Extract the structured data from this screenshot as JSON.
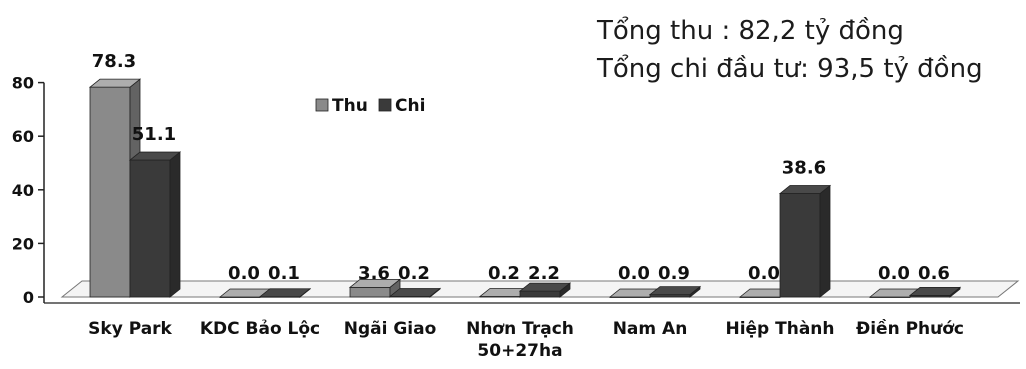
{
  "annotations": {
    "total_income": "Tổng thu : 82,2  tỷ đồng",
    "total_spend": "Tổng chi đầu tư: 93,5 tỷ đồng"
  },
  "chart_data": {
    "type": "bar",
    "style": "3d-clustered-column",
    "categories": [
      "Sky Park",
      "KDC Bảo Lộc",
      "Ngãi Giao",
      "Nhơn Trạch 50+27ha",
      "Nam An",
      "Hiệp Thành",
      "Điền Phước"
    ],
    "category_lines": [
      [
        "Sky Park"
      ],
      [
        "KDC Bảo Lộc"
      ],
      [
        "Ngãi Giao"
      ],
      [
        "Nhơn Trạch",
        "50+27ha"
      ],
      [
        "Nam An"
      ],
      [
        "Hiệp Thành"
      ],
      [
        "Điền Phước"
      ]
    ],
    "series": [
      {
        "name": "Thu",
        "values": [
          78.3,
          0.0,
          3.6,
          0.2,
          0.0,
          0.0,
          0.0
        ],
        "labels": [
          "78.3",
          "0.0",
          "3.6",
          "0.2",
          "0.0",
          "0.0",
          "0.0"
        ],
        "color": "#8a8a8a"
      },
      {
        "name": "Chi",
        "values": [
          51.1,
          0.1,
          0.2,
          2.2,
          0.9,
          38.6,
          0.6
        ],
        "labels": [
          "51.1",
          "0.1",
          "0.2",
          "2.2",
          "0.9",
          "38.6",
          "0.6"
        ],
        "color": "#3a3a3a"
      }
    ],
    "y_ticks": [
      0,
      20,
      40,
      60,
      80
    ],
    "ylim": [
      0,
      80
    ],
    "legend_position": "top-center",
    "grid": false
  }
}
